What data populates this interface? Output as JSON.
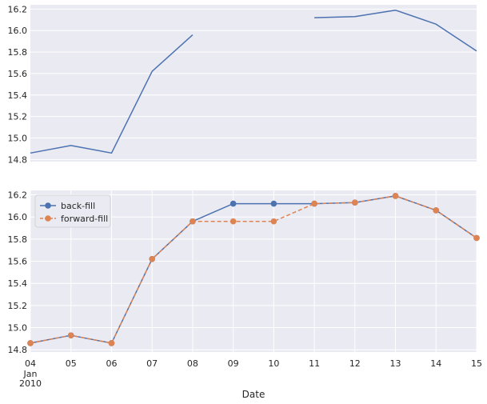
{
  "chart_data": [
    {
      "type": "line",
      "x": [
        "2010-01-04",
        "2010-01-05",
        "2010-01-06",
        "2010-01-07",
        "2010-01-08",
        "2010-01-09",
        "2010-01-10",
        "2010-01-11",
        "2010-01-12",
        "2010-01-13",
        "2010-01-14",
        "2010-01-15"
      ],
      "series": [
        {
          "values": [
            14.86,
            14.93,
            14.86,
            15.62,
            15.96,
            null,
            null,
            16.12,
            16.13,
            16.19,
            16.06,
            15.81
          ],
          "color": "#4c72b0",
          "marker": "none",
          "dash": "solid"
        }
      ],
      "ylim": [
        14.78,
        16.24
      ],
      "yticks": [
        "14.8",
        "15.0",
        "15.2",
        "15.4",
        "15.6",
        "15.8",
        "16.0",
        "16.2"
      ],
      "xticks_shown": false,
      "grid": true,
      "background": "#eaeaf2"
    },
    {
      "type": "line",
      "x": [
        "2010-01-04",
        "2010-01-05",
        "2010-01-06",
        "2010-01-07",
        "2010-01-08",
        "2010-01-09",
        "2010-01-10",
        "2010-01-11",
        "2010-01-12",
        "2010-01-13",
        "2010-01-14",
        "2010-01-15"
      ],
      "series": [
        {
          "name": "back-fill",
          "values": [
            14.86,
            14.93,
            14.86,
            15.62,
            15.96,
            16.12,
            16.12,
            16.12,
            16.13,
            16.19,
            16.06,
            15.81
          ],
          "color": "#4c72b0",
          "marker": "circle",
          "dash": "solid"
        },
        {
          "name": "forward-fill",
          "values": [
            14.86,
            14.93,
            14.86,
            15.62,
            15.96,
            15.96,
            15.96,
            16.12,
            16.13,
            16.19,
            16.06,
            15.81
          ],
          "color": "#dd8452",
          "marker": "circle",
          "dash": "dashed"
        }
      ],
      "ylim": [
        14.78,
        16.24
      ],
      "yticks": [
        "14.8",
        "15.0",
        "15.2",
        "15.4",
        "15.6",
        "15.8",
        "16.0",
        "16.2"
      ],
      "xtick_labels": [
        "04",
        "05",
        "06",
        "07",
        "08",
        "09",
        "10",
        "11",
        "12",
        "13",
        "14",
        "15"
      ],
      "xtick_sublabels": [
        "Jan",
        "2010"
      ],
      "xlabel": "Date",
      "legend": "top-left",
      "grid": true,
      "background": "#eaeaf2"
    }
  ]
}
